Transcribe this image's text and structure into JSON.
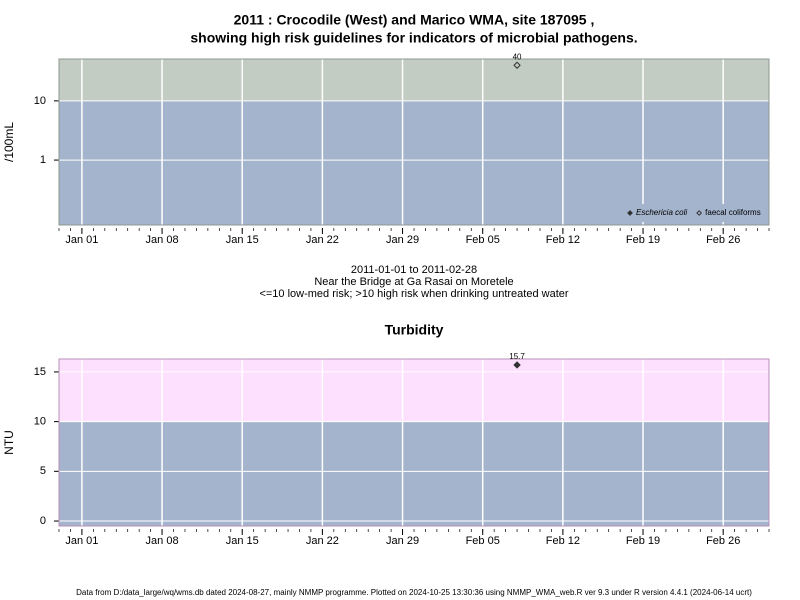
{
  "chart_data": [
    {
      "type": "scatter",
      "title": [
        "2011 : Crocodile (West) and Marico WMA, site 187095 ,",
        "showing high risk guidelines for indicators of microbial pathogens."
      ],
      "ylabel": "/100mL",
      "log_scale": true,
      "x": [
        "2011-02-08"
      ],
      "series": [
        {
          "name": "Eschericia coli",
          "color": "#333333",
          "filled": true,
          "values": [
            null
          ]
        },
        {
          "name": "faecal coliforms",
          "color": "#333333",
          "filled": false,
          "values": [
            40
          ]
        }
      ],
      "threshold": 10,
      "below_color": "#a3b4cc",
      "above_color": "#c2ccc2",
      "border_color": "#909890",
      "xlim": [
        "2010-12-30",
        "2011-03-02"
      ],
      "xticks": [
        {
          "value": "2011-01-01",
          "label": "Jan 01"
        },
        {
          "value": "2011-01-08",
          "label": "Jan 08"
        },
        {
          "value": "2011-01-15",
          "label": "Jan 15"
        },
        {
          "value": "2011-01-22",
          "label": "Jan 22"
        },
        {
          "value": "2011-01-29",
          "label": "Jan 29"
        },
        {
          "value": "2011-02-05",
          "label": "Feb 05"
        },
        {
          "value": "2011-02-12",
          "label": "Feb 12"
        },
        {
          "value": "2011-02-19",
          "label": "Feb 19"
        },
        {
          "value": "2011-02-26",
          "label": "Feb 26"
        }
      ],
      "ylim": [
        0.08,
        51
      ],
      "yticks": [
        1,
        10
      ],
      "grid": true,
      "legend": "bottom-right",
      "notes": [
        "2011-01-01 to 2011-02-28",
        "Near the Bridge at Ga Rasai on Moretele",
        "<=10 low-med risk; >10 high risk when drinking untreated water"
      ]
    },
    {
      "type": "scatter",
      "title": [
        "Turbidity"
      ],
      "ylabel": "NTU",
      "log_scale": false,
      "x": [
        "2011-02-08"
      ],
      "series": [
        {
          "color": "#333333",
          "filled": true,
          "values": [
            15.7
          ]
        }
      ],
      "threshold": 10,
      "below_color": "#a3b4cc",
      "above_color": "#fde0fd",
      "border_color": "#b890b8",
      "xlim": [
        "2010-12-30",
        "2011-03-02"
      ],
      "xticks": [
        {
          "value": "2011-01-01",
          "label": "Jan 01"
        },
        {
          "value": "2011-01-08",
          "label": "Jan 08"
        },
        {
          "value": "2011-01-15",
          "label": "Jan 15"
        },
        {
          "value": "2011-01-22",
          "label": "Jan 22"
        },
        {
          "value": "2011-01-29",
          "label": "Jan 29"
        },
        {
          "value": "2011-02-05",
          "label": "Feb 05"
        },
        {
          "value": "2011-02-12",
          "label": "Feb 12"
        },
        {
          "value": "2011-02-19",
          "label": "Feb 19"
        },
        {
          "value": "2011-02-26",
          "label": "Feb 26"
        }
      ],
      "ylim": [
        -0.5,
        16.3
      ],
      "yticks": [
        0,
        5,
        10,
        15
      ],
      "grid": true
    }
  ],
  "footer": "Data from D:/data_large/wq/wms.db dated 2024-08-27, mainly NMMP programme. Plotted on 2024-10-25 13:30:36 using NMMP_WMA_web.R ver 9.3 under R version 4.4.1 (2024-06-14 ucrt)"
}
